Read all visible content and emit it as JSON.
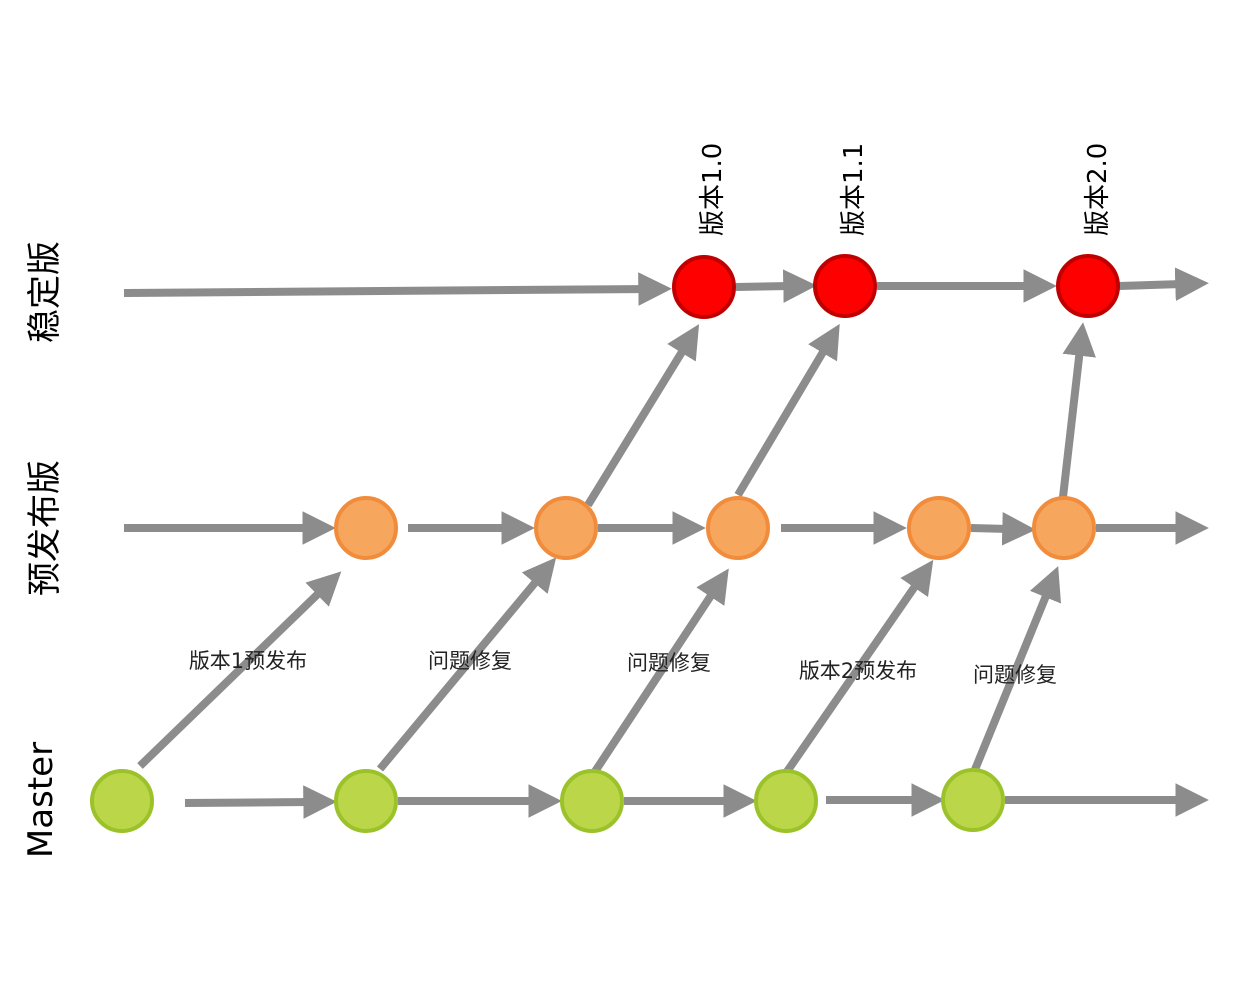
{
  "lanes": {
    "stable": "稳定版",
    "prerelease": "预发布版",
    "master": "Master"
  },
  "version_labels": [
    "版本1.0",
    "版本1.1",
    "版本2.0"
  ],
  "edge_labels": [
    "版本1预发布",
    "问题修复",
    "问题修复",
    "版本2预发布",
    "问题修复"
  ],
  "colors": {
    "arrow": "#8c8c8c",
    "stable_fill": "#ff0000",
    "stable_stroke": "#c00000",
    "prerelease_fill": "#f7a65e",
    "prerelease_stroke": "#f08c3c",
    "master_fill": "#bcd64a",
    "master_stroke": "#9cc22a"
  }
}
